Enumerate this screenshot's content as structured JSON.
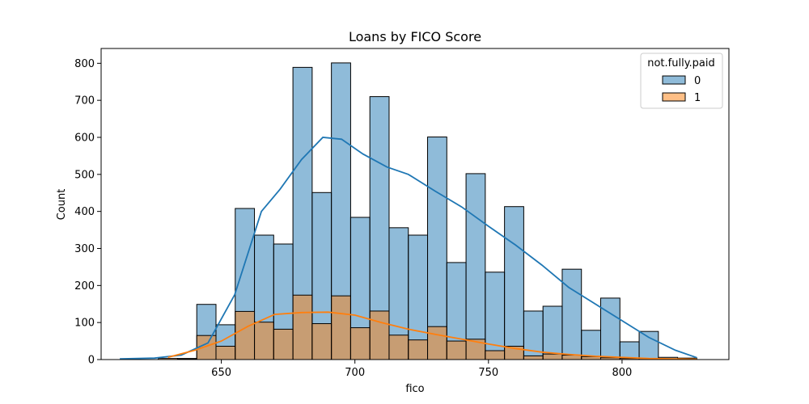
{
  "chart_data": {
    "type": "histogram",
    "title": "Loans by FICO Score",
    "xlabel": "fico",
    "ylabel": "Count",
    "xlim": [
      605,
      840
    ],
    "ylim": [
      0,
      840
    ],
    "xticks": [
      650,
      700,
      750,
      800
    ],
    "yticks": [
      0,
      100,
      200,
      300,
      400,
      500,
      600,
      700,
      800
    ],
    "bin_edges": [
      612,
      619.2,
      626.4,
      633.6,
      640.8,
      648,
      655.2,
      662.4,
      669.6,
      676.8,
      684,
      691.2,
      698.4,
      705.6,
      712.8,
      720,
      727.2,
      734.4,
      741.6,
      748.8,
      756,
      763.2,
      770.4,
      777.6,
      784.8,
      792,
      799.2,
      806.4,
      813.6,
      820.8,
      828
    ],
    "legend": {
      "title": "not.fully.paid",
      "position": "top-right"
    },
    "series": [
      {
        "name": "0",
        "color": "#1f77b4",
        "counts": [
          0,
          0,
          0,
          3,
          149,
          94,
          408,
          336,
          312,
          789,
          451,
          801,
          384,
          710,
          356,
          336,
          601,
          262,
          502,
          236,
          413,
          131,
          144,
          244,
          79,
          166,
          48,
          76,
          6,
          4
        ],
        "kde": [
          [
            612,
            2
          ],
          [
            625,
            4
          ],
          [
            635,
            12
          ],
          [
            645,
            45
          ],
          [
            655,
            175
          ],
          [
            665,
            400
          ],
          [
            672,
            460
          ],
          [
            680,
            540
          ],
          [
            688,
            600
          ],
          [
            695,
            595
          ],
          [
            703,
            555
          ],
          [
            712,
            520
          ],
          [
            720,
            500
          ],
          [
            730,
            455
          ],
          [
            740,
            412
          ],
          [
            750,
            360
          ],
          [
            760,
            310
          ],
          [
            770,
            255
          ],
          [
            780,
            195
          ],
          [
            790,
            150
          ],
          [
            800,
            105
          ],
          [
            810,
            60
          ],
          [
            820,
            25
          ],
          [
            828,
            5
          ]
        ]
      },
      {
        "name": "1",
        "color": "#ff7f0e",
        "counts": [
          0,
          0,
          3,
          2,
          65,
          36,
          130,
          101,
          82,
          174,
          97,
          172,
          86,
          131,
          66,
          53,
          89,
          50,
          55,
          24,
          36,
          10,
          15,
          12,
          8,
          5,
          3,
          3,
          0,
          0
        ],
        "kde": [
          [
            630,
            6
          ],
          [
            640,
            25
          ],
          [
            650,
            50
          ],
          [
            660,
            90
          ],
          [
            670,
            122
          ],
          [
            680,
            127
          ],
          [
            690,
            128
          ],
          [
            700,
            120
          ],
          [
            710,
            100
          ],
          [
            720,
            82
          ],
          [
            730,
            68
          ],
          [
            740,
            55
          ],
          [
            750,
            42
          ],
          [
            760,
            30
          ],
          [
            770,
            20
          ],
          [
            780,
            14
          ],
          [
            790,
            9
          ],
          [
            800,
            6
          ],
          [
            810,
            3
          ],
          [
            820,
            2
          ],
          [
            828,
            1
          ]
        ]
      }
    ]
  }
}
